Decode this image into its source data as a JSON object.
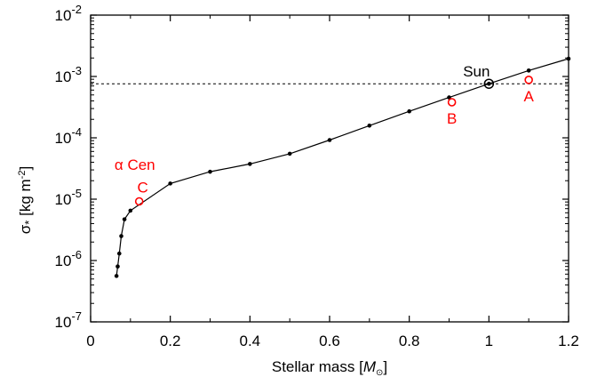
{
  "chart_data": {
    "type": "line",
    "xlabel": "Stellar mass [M⊙]",
    "xlabel_parts": {
      "prefix": "Stellar mass [",
      "symbol": "M",
      "sub": "⊙",
      "suffix": "]"
    },
    "ylabel": "σ* [kg m-2]",
    "ylabel_parts": {
      "prefix": "σ",
      "star": "*",
      "main": " [kg m",
      "sup": "-2",
      "end": "]"
    },
    "xlim": [
      0,
      1.2
    ],
    "ylim_log10": [
      -7,
      -2
    ],
    "yscale": "log",
    "x_ticks": [
      "0",
      "0.2",
      "0.4",
      "0.6",
      "0.8",
      "1",
      "1.2"
    ],
    "x_tick_values": [
      0,
      0.2,
      0.4,
      0.6,
      0.8,
      1.0,
      1.2
    ],
    "y_ticks": [
      {
        "base": "10",
        "exp": "-7",
        "value": -7
      },
      {
        "base": "10",
        "exp": "-6",
        "value": -6
      },
      {
        "base": "10",
        "exp": "-5",
        "value": -5
      },
      {
        "base": "10",
        "exp": "-4",
        "value": -4
      },
      {
        "base": "10",
        "exp": "-3",
        "value": -3
      },
      {
        "base": "10",
        "exp": "-2",
        "value": -2
      }
    ],
    "grid": false,
    "series": [
      {
        "x": [
          0.065,
          0.068,
          0.072,
          0.077,
          0.085,
          0.1,
          0.2,
          0.3,
          0.4,
          0.5,
          0.6,
          0.7,
          0.8,
          0.9,
          1.0,
          1.1,
          1.2
        ],
        "y": [
          5.6e-07,
          8e-07,
          1.3e-06,
          2.5e-06,
          4.7e-06,
          6.5e-06,
          1.8e-05,
          2.8e-05,
          3.75e-05,
          5.5e-05,
          9.2e-05,
          0.000158,
          0.00027,
          0.000455,
          0.00076,
          0.00125,
          0.00195
        ],
        "color": "#000000"
      }
    ],
    "reference_line": {
      "y": 0.00076,
      "style": "dashed",
      "color": "#000000"
    },
    "sun_marker": {
      "x": 1.0,
      "y": 0.00076,
      "label": "Sun",
      "color": "#000000"
    },
    "highlight_points": [
      {
        "x": 1.1,
        "y": 0.00088,
        "label": "A",
        "color": "#ff0000",
        "label_pos": "below"
      },
      {
        "x": 0.907,
        "y": 0.00038,
        "label": "B",
        "color": "#ff0000",
        "label_pos": "below"
      },
      {
        "x": 0.122,
        "y": 9.2e-06,
        "label": "C",
        "color": "#ff0000",
        "label_pos": "above"
      }
    ],
    "group_label": {
      "text": "α Cen",
      "color": "#ff0000",
      "x": 0.06,
      "y": 3e-05
    }
  }
}
